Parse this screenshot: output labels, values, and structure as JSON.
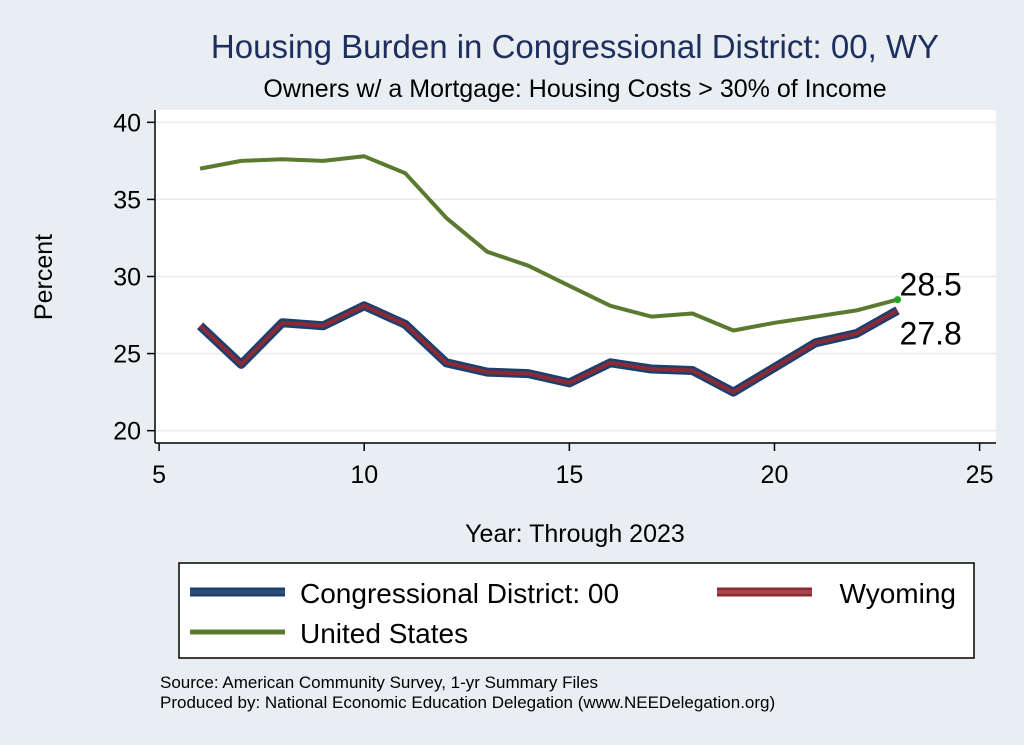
{
  "chart_data": {
    "type": "line",
    "title": "Housing Burden in Congressional District:  00, WY",
    "subtitle": "Owners w/ a Mortgage: Housing Costs > 30% of Income",
    "xlabel": "Year: Through 2023",
    "ylabel": "Percent",
    "xlim": [
      4.9,
      25.4
    ],
    "ylim": [
      19.2,
      40.8
    ],
    "x_ticks": [
      5,
      10,
      15,
      20,
      25
    ],
    "y_ticks": [
      20,
      25,
      30,
      35,
      40
    ],
    "grid": "horizontal",
    "legend_position": "bottom",
    "x": [
      6,
      7,
      8,
      9,
      10,
      11,
      12,
      13,
      14,
      15,
      16,
      17,
      18,
      19,
      20,
      21,
      22,
      23
    ],
    "series": [
      {
        "name": "Congressional District:  00",
        "color": "#1b3f6e",
        "values": [
          26.8,
          24.3,
          27.0,
          26.8,
          28.1,
          26.9,
          24.4,
          23.8,
          23.7,
          23.1,
          24.4,
          24.0,
          23.9,
          22.5,
          24.1,
          25.7,
          26.3,
          27.8
        ]
      },
      {
        "name": "Wyoming",
        "color": "#8b2a35",
        "values": [
          26.8,
          24.3,
          27.0,
          26.8,
          28.1,
          26.9,
          24.4,
          23.8,
          23.7,
          23.1,
          24.4,
          24.0,
          23.9,
          22.5,
          24.1,
          25.7,
          26.3,
          27.8
        ]
      },
      {
        "name": "United States",
        "color": "#5a7a2f",
        "values": [
          37.0,
          37.5,
          37.6,
          37.5,
          37.8,
          36.7,
          33.8,
          31.6,
          30.7,
          29.4,
          28.1,
          27.4,
          27.6,
          26.5,
          27.0,
          27.4,
          27.8,
          28.5
        ]
      }
    ],
    "end_labels": [
      "28.5",
      "27.8"
    ]
  },
  "footer": {
    "source": "Source: American Community Survey, 1-yr Summary Files",
    "producer": "Produced by: National Economic Education Delegation (www.NEEDelegation.org)"
  }
}
